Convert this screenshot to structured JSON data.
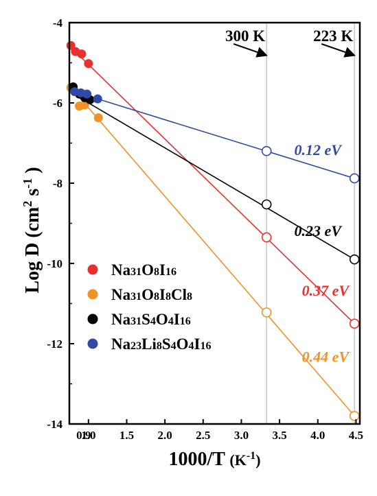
{
  "chart_data": {
    "type": "scatter",
    "xlabel": "1000/T",
    "xlabel_unit": "(K",
    "xlabel_unit_exp": "-1",
    "xlabel_unit_close": ")",
    "ylabel": "Log D",
    "ylabel_unit": "(cm",
    "ylabel_exp1": "2",
    "ylabel_mid": " s",
    "ylabel_exp2": "-1",
    "ylabel_close": ")",
    "xlim": [
      0.75,
      4.55
    ],
    "ylim": [
      -14,
      -4
    ],
    "xticks": [
      "1.0",
      "1.5",
      "2.0",
      "2.5",
      "3.0",
      "3.5",
      "4.0",
      "4.5"
    ],
    "xtick_values": [
      1.0,
      1.5,
      2.0,
      2.5,
      3.0,
      3.5,
      4.0,
      4.5
    ],
    "yticks": [
      "-4",
      "-6",
      "-8",
      "-10",
      "-12",
      "-14"
    ],
    "ytick_values": [
      -4,
      -6,
      -8,
      -10,
      -12,
      -14
    ],
    "x_label_extra": {
      "text": "0.9",
      "value": 0.9
    },
    "legend_position": "lower-left",
    "grid": false,
    "temperature_markers": [
      {
        "label": "300 K",
        "x": 3.33
      },
      {
        "label": "223 K",
        "x": 4.48
      }
    ],
    "series": [
      {
        "legend": [
          "Na",
          "31",
          "O",
          "8",
          "I",
          "16"
        ],
        "color": "#e8302d",
        "points": [
          [
            0.77,
            -4.57
          ],
          [
            0.83,
            -4.72
          ],
          [
            0.91,
            -4.78
          ],
          [
            1.0,
            -5.02
          ]
        ],
        "fit": [
          [
            0.75,
            -4.58
          ],
          [
            4.48,
            -11.5
          ]
        ],
        "extrapolated": [
          [
            3.33,
            -9.35
          ],
          [
            4.48,
            -11.5
          ]
        ],
        "activation_energy": "0.37 eV",
        "ea_pos": [
          4.1,
          -10.8
        ]
      },
      {
        "legend": [
          "Na",
          "31",
          "O",
          "8",
          "I",
          "8",
          "Cl",
          "8"
        ],
        "color": "#f29125",
        "points": [
          [
            0.77,
            -5.62
          ],
          [
            0.88,
            -6.08
          ],
          [
            0.95,
            -6.05
          ],
          [
            1.13,
            -6.37
          ]
        ],
        "fit": [
          [
            0.75,
            -5.57
          ],
          [
            4.48,
            -13.8
          ]
        ],
        "extrapolated": [
          [
            3.33,
            -11.22
          ],
          [
            4.48,
            -13.8
          ]
        ],
        "activation_energy": "0.44 eV",
        "ea_pos": [
          4.1,
          -12.45
        ]
      },
      {
        "legend": [
          "Na",
          "31",
          "S",
          "4",
          "O",
          "4",
          "I",
          "16"
        ],
        "color": "#000000",
        "points": [
          [
            0.8,
            -5.6
          ],
          [
            0.88,
            -5.78
          ],
          [
            0.95,
            -5.87
          ],
          [
            1.02,
            -5.92
          ]
        ],
        "fit": [
          [
            0.75,
            -5.72
          ],
          [
            4.48,
            -9.9
          ]
        ],
        "extrapolated": [
          [
            3.33,
            -8.53
          ],
          [
            4.48,
            -9.9
          ]
        ],
        "activation_energy": "0.23 eV",
        "ea_pos": [
          4.0,
          -9.32
        ]
      },
      {
        "legend": [
          "Na",
          "23",
          "Li",
          "8",
          "S",
          "4",
          "O",
          "4",
          "I",
          "16"
        ],
        "color": "#2f4aa6",
        "points": [
          [
            0.82,
            -5.72
          ],
          [
            0.9,
            -5.75
          ],
          [
            0.98,
            -5.78
          ],
          [
            1.12,
            -5.9
          ]
        ],
        "fit": [
          [
            0.78,
            -5.7
          ],
          [
            4.48,
            -7.88
          ]
        ],
        "extrapolated": [
          [
            3.33,
            -7.2
          ],
          [
            4.48,
            -7.88
          ]
        ],
        "activation_energy": "0.12 eV",
        "ea_pos": [
          4.0,
          -7.3
        ]
      }
    ]
  }
}
